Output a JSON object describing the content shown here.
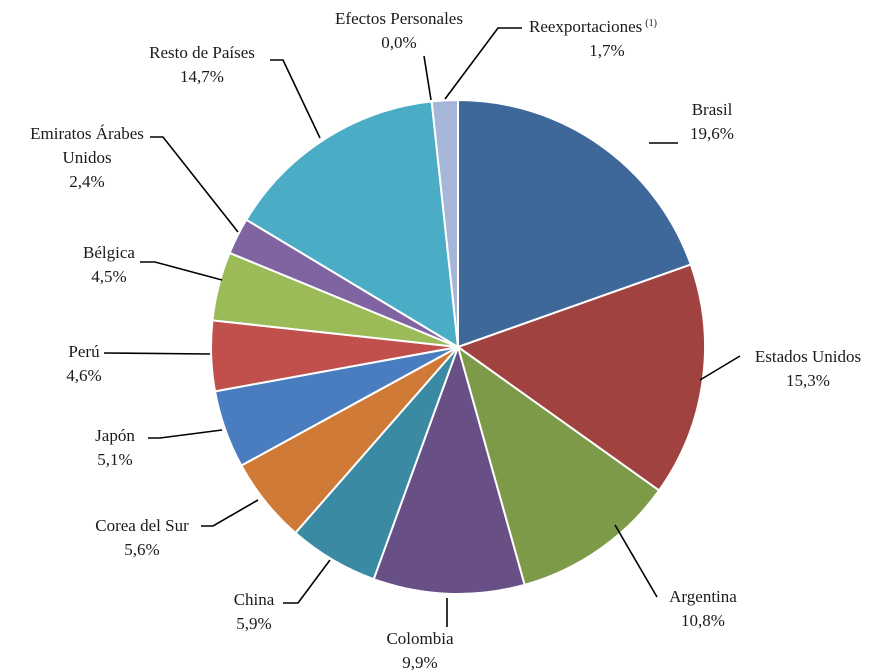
{
  "chart_data": {
    "type": "pie",
    "title": "",
    "legend": "none",
    "slices": [
      {
        "label": "Brasil",
        "value": 19.6,
        "pct": "19,6%",
        "color": "#3e6899"
      },
      {
        "label": "Estados Unidos",
        "value": 15.3,
        "pct": "15,3%",
        "color": "#9f4240"
      },
      {
        "label": "Argentina",
        "value": 10.8,
        "pct": "10,8%",
        "color": "#7d9a48"
      },
      {
        "label": "Colombia",
        "value": 9.9,
        "pct": "9,9%",
        "color": "#684f86"
      },
      {
        "label": "China",
        "value": 5.9,
        "pct": "5,9%",
        "color": "#3a8aa3"
      },
      {
        "label": "Corea del Sur",
        "value": 5.6,
        "pct": "5,6%",
        "color": "#d07a38"
      },
      {
        "label": "Japón",
        "value": 5.1,
        "pct": "5,1%",
        "color": "#4a7cc0"
      },
      {
        "label": "Perú",
        "value": 4.6,
        "pct": "4,6%",
        "color": "#c1504d"
      },
      {
        "label": "Bélgica",
        "value": 4.5,
        "pct": "4,5%",
        "color": "#9bbb59"
      },
      {
        "label": "Emiratos Árabes Unidos",
        "value": 2.4,
        "pct": "2,4%",
        "color": "#8064a2"
      },
      {
        "label": "Resto de Países",
        "value": 14.7,
        "pct": "14,7%",
        "color": "#4bacc6"
      },
      {
        "label": "Efectos Personales",
        "value": 0.0,
        "pct": "0,0%",
        "color": "#f79646"
      },
      {
        "label": "Reexportaciones",
        "value": 1.7,
        "pct": "1,7%",
        "color": "#a5b6d9",
        "superscript": "(1)"
      }
    ]
  }
}
